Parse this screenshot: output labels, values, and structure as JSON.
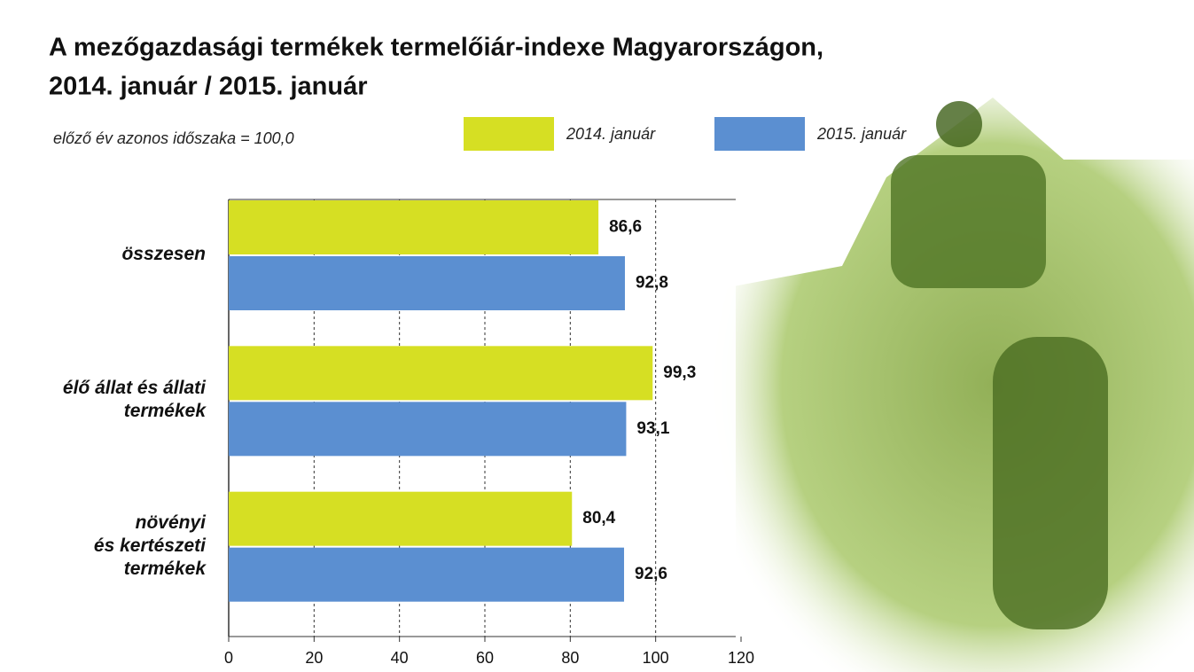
{
  "chart_data": {
    "type": "hbar",
    "title": "A mezőgazdasági termékek termelőiár-indexe Magyarországon,",
    "subtitle": "2014. január / 2015. január",
    "note": "előző év azonos időszaka = 100,0",
    "categories": [
      "összesen",
      "élő állat és állati\ntermékek",
      "növényi\nés kertészeti\ntermékek"
    ],
    "series": [
      {
        "name": "2014. január",
        "color": "#d6df23",
        "values": [
          86.6,
          99.3,
          80.4
        ],
        "value_labels": [
          "86,6",
          "99,3",
          "80,4"
        ]
      },
      {
        "name": "2015. január",
        "color": "#5b8fd1",
        "values": [
          92.8,
          93.1,
          92.6
        ],
        "value_labels": [
          "92,8",
          "93,1",
          "92,6"
        ]
      }
    ],
    "xlim": [
      0,
      120
    ],
    "xticks": [
      0,
      20,
      40,
      60,
      80,
      100,
      120
    ],
    "grid": true,
    "legend": "top"
  }
}
